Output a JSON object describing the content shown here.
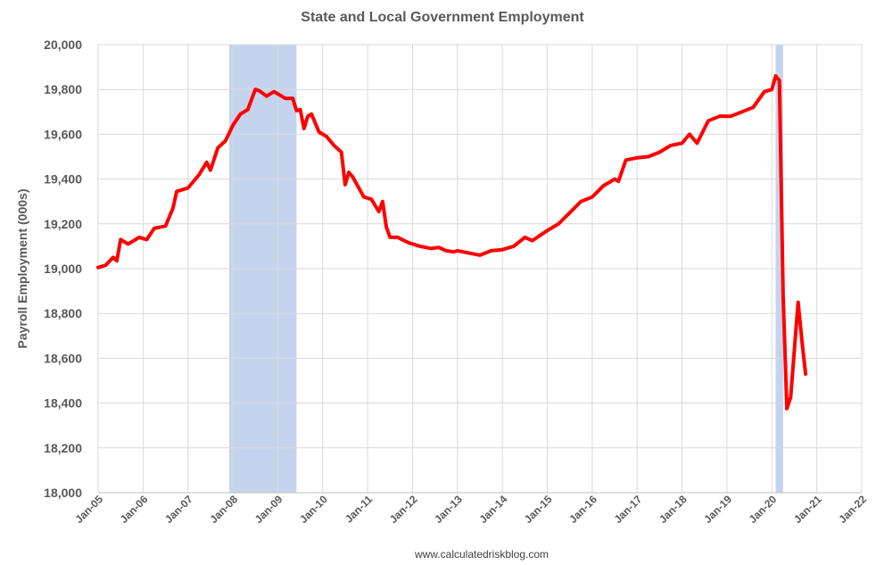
{
  "chart_data": {
    "type": "line",
    "title": "State and Local Government Employment",
    "ylabel": "Payroll Employment (000s)",
    "xlabel": "",
    "source": "www.calculatedriskblog.com",
    "ylim": [
      18000,
      20000
    ],
    "yticks": [
      18000,
      18200,
      18400,
      18600,
      18800,
      19000,
      19200,
      19400,
      19600,
      19800,
      20000
    ],
    "ytick_labels": [
      "18,000",
      "18,200",
      "18,400",
      "18,600",
      "18,800",
      "19,000",
      "19,200",
      "19,400",
      "19,600",
      "19,800",
      "20,000"
    ],
    "xlim": [
      "2005-01",
      "2022-01"
    ],
    "xtick_labels": [
      "Jan-05",
      "Jan-06",
      "Jan-07",
      "Jan-08",
      "Jan-09",
      "Jan-10",
      "Jan-11",
      "Jan-12",
      "Jan-13",
      "Jan-14",
      "Jan-15",
      "Jan-16",
      "Jan-17",
      "Jan-18",
      "Jan-19",
      "Jan-20",
      "Jan-21",
      "Jan-22"
    ],
    "grid": true,
    "legend": "none",
    "recessions": [
      {
        "start": "2007-12",
        "end": "2009-06"
      },
      {
        "start": "2020-02",
        "end": "2020-04"
      }
    ],
    "colors": {
      "line": "#ff0000",
      "recession": "#c5d4ee",
      "grid": "#d9d9d9"
    },
    "series": [
      {
        "x": [
          "2005-01",
          "2005-03",
          "2005-05",
          "2005-06",
          "2005-07",
          "2005-09",
          "2005-12",
          "2006-02",
          "2006-04",
          "2006-07",
          "2006-09",
          "2006-10",
          "2007-01",
          "2007-04",
          "2007-06",
          "2007-07",
          "2007-09",
          "2007-11",
          "2008-01",
          "2008-03",
          "2008-05",
          "2008-07",
          "2008-08",
          "2008-10",
          "2008-12",
          "2009-01",
          "2009-03",
          "2009-05",
          "2009-06",
          "2009-07",
          "2009-08",
          "2009-09",
          "2009-10",
          "2009-12",
          "2010-02",
          "2010-04",
          "2010-06",
          "2010-07",
          "2010-08",
          "2010-09",
          "2010-10",
          "2010-12",
          "2011-02",
          "2011-04",
          "2011-05",
          "2011-06",
          "2011-07",
          "2011-09",
          "2011-12",
          "2012-03",
          "2012-06",
          "2012-08",
          "2012-10",
          "2012-12",
          "2013-01",
          "2013-04",
          "2013-07",
          "2013-10",
          "2014-01",
          "2014-04",
          "2014-07",
          "2014-09",
          "2015-01",
          "2015-04",
          "2015-07",
          "2015-10",
          "2016-01",
          "2016-04",
          "2016-07",
          "2016-08",
          "2016-10",
          "2017-01",
          "2017-04",
          "2017-07",
          "2017-10",
          "2018-01",
          "2018-03",
          "2018-05",
          "2018-08",
          "2018-11",
          "2019-02",
          "2019-05",
          "2019-08",
          "2019-11",
          "2020-01",
          "2020-02",
          "2020-03",
          "2020-04",
          "2020-05",
          "2020-06",
          "2020-08",
          "2020-09",
          "2020-10"
        ],
        "values": [
          19005,
          19015,
          19050,
          19035,
          19130,
          19110,
          19140,
          19130,
          19180,
          19190,
          19270,
          19345,
          19360,
          19420,
          19475,
          19440,
          19540,
          19570,
          19640,
          19690,
          19710,
          19800,
          19795,
          19770,
          19790,
          19780,
          19760,
          19760,
          19705,
          19710,
          19625,
          19680,
          19690,
          19610,
          19590,
          19550,
          19520,
          19375,
          19430,
          19410,
          19380,
          19320,
          19310,
          19255,
          19300,
          19185,
          19140,
          19140,
          19115,
          19100,
          19090,
          19095,
          19080,
          19075,
          19080,
          19070,
          19060,
          19080,
          19085,
          19100,
          19140,
          19125,
          19170,
          19200,
          19250,
          19300,
          19320,
          19370,
          19400,
          19390,
          19485,
          19495,
          19500,
          19520,
          19550,
          19560,
          19600,
          19560,
          19660,
          19680,
          19680,
          19700,
          19720,
          19790,
          19800,
          19860,
          19840,
          18880,
          18375,
          18425,
          18850,
          18680,
          18530
        ]
      }
    ]
  }
}
